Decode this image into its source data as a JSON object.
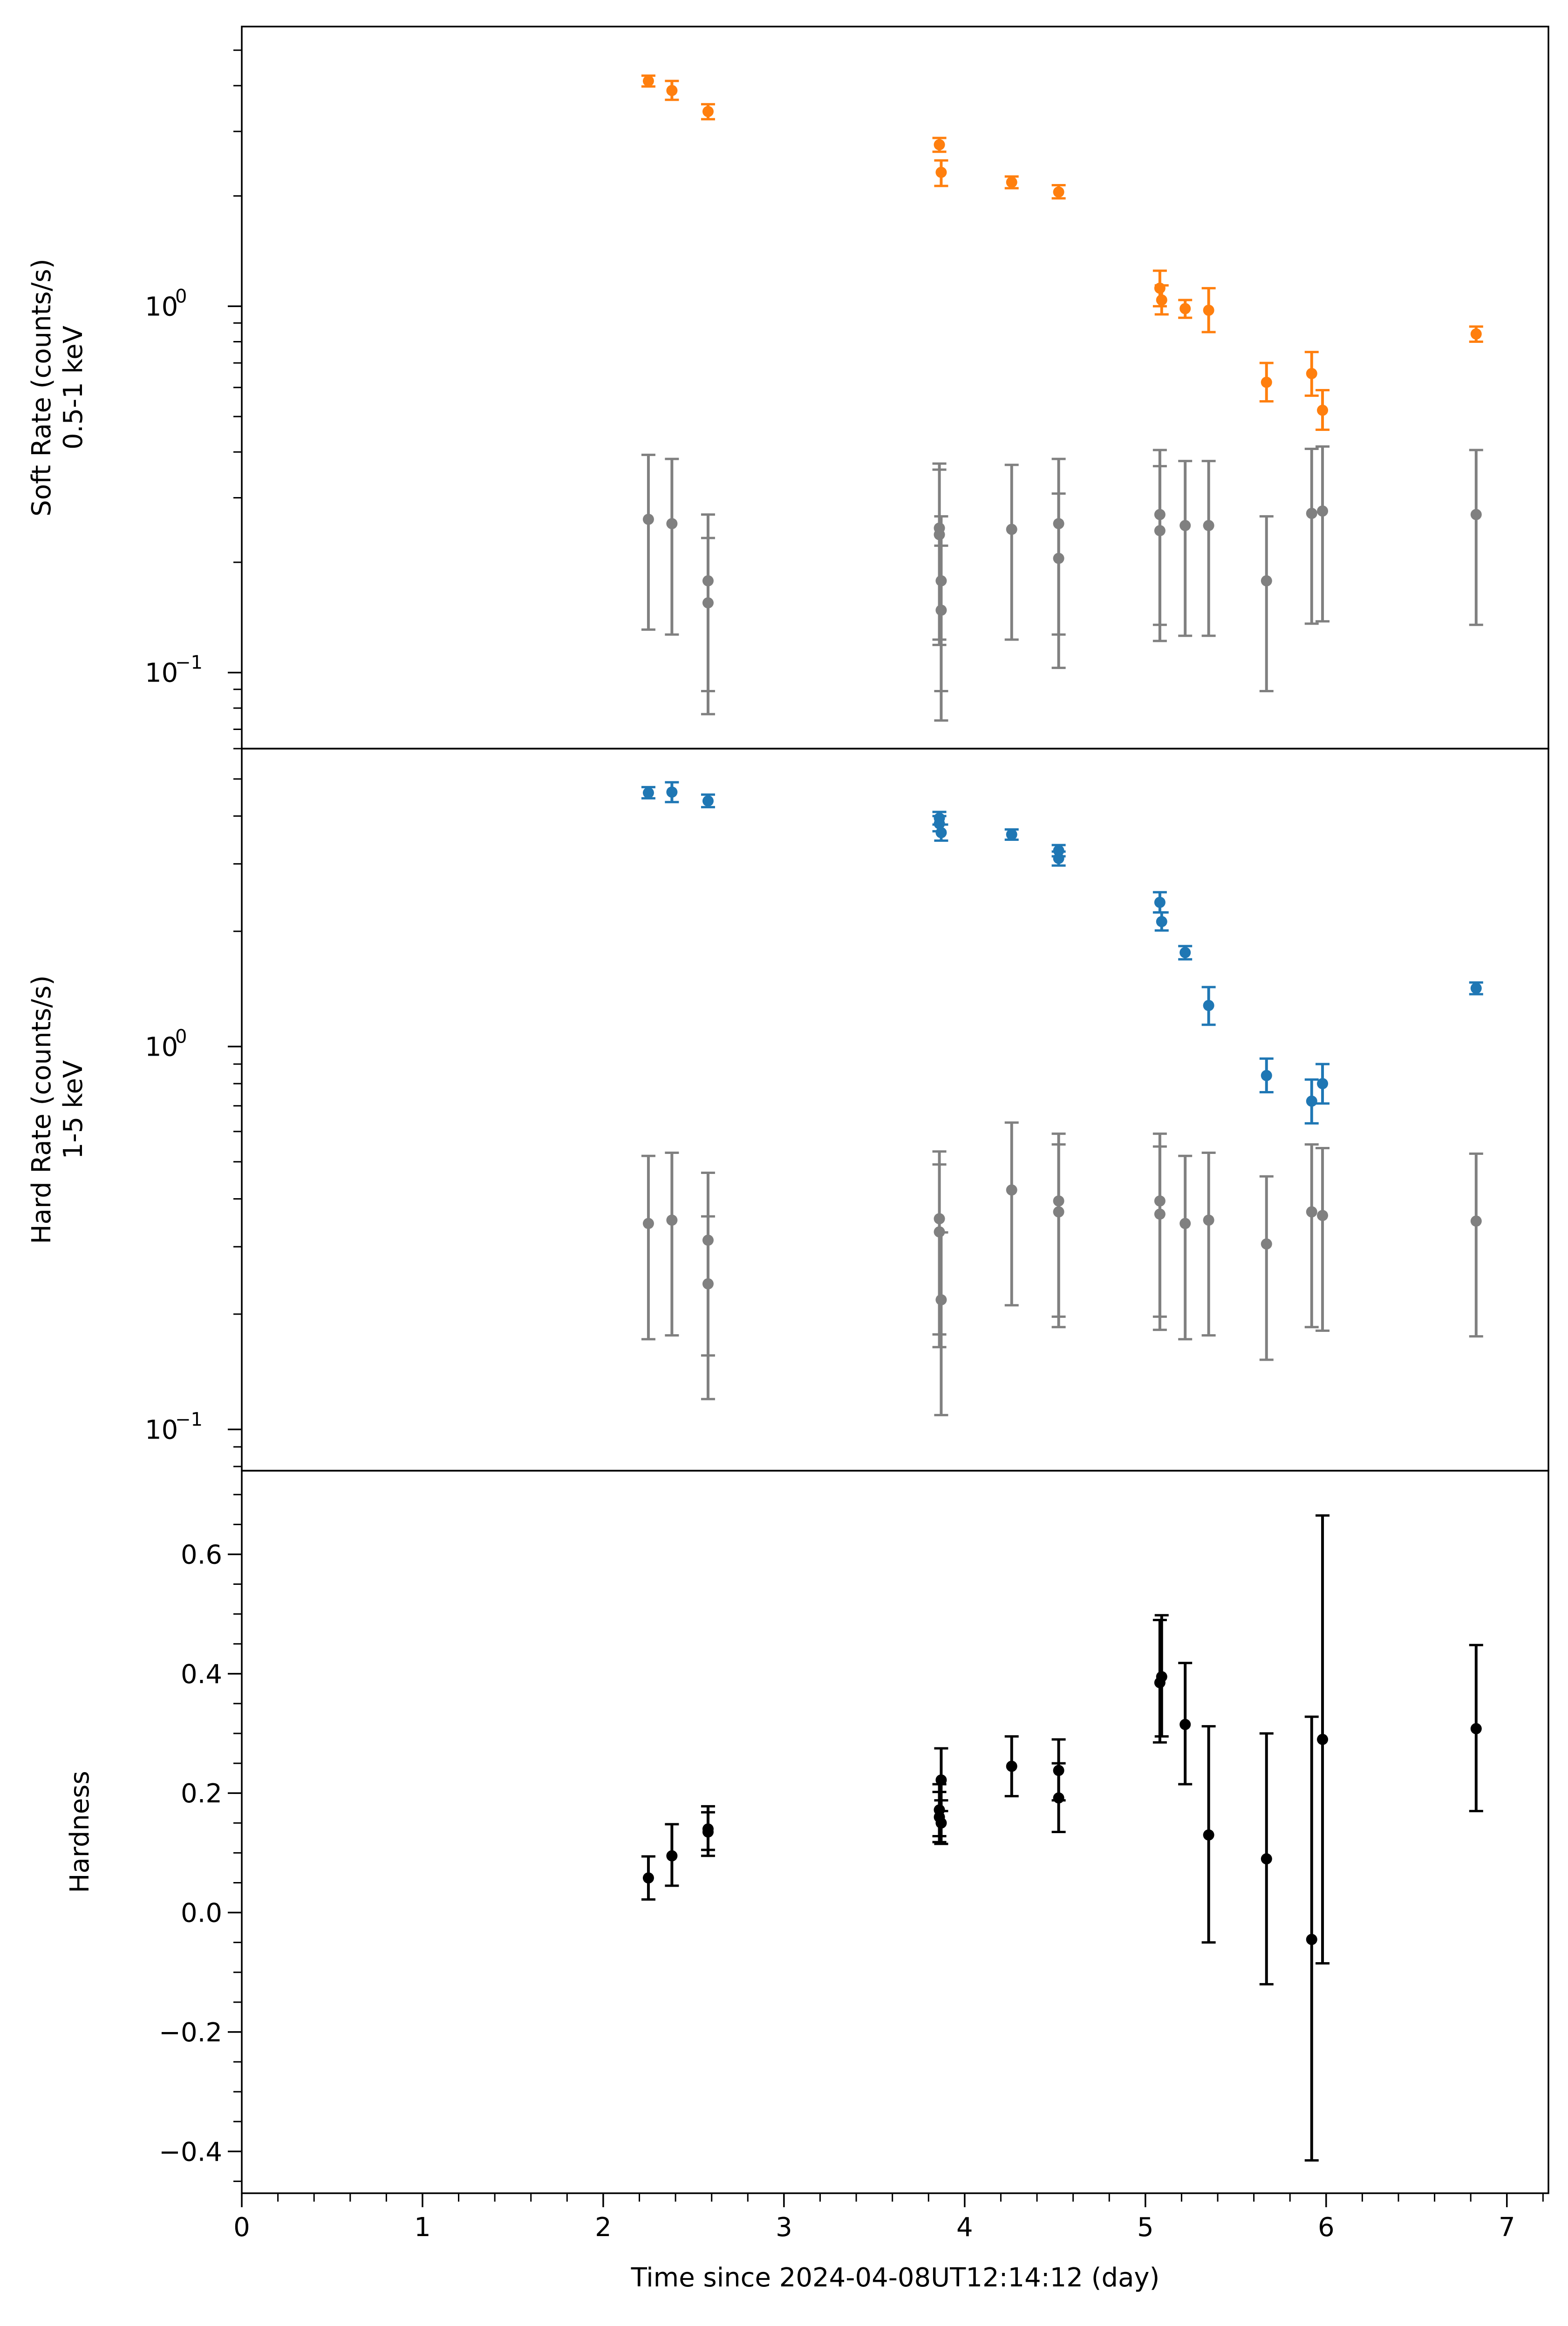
{
  "chart_data": [
    {
      "type": "scatter",
      "panel": "soft",
      "ylabel_lines": [
        "Soft Rate (counts/s)",
        "0.5-1 keV"
      ],
      "yscale": "log",
      "ylim": [
        0.062,
        5.8
      ],
      "major_ticks": [
        {
          "value": 0.1,
          "base": "10",
          "exp": "−1"
        },
        {
          "value": 1,
          "base": "10",
          "exp": "0"
        }
      ],
      "series": [
        {
          "name": "source",
          "color": "#ff7f0e",
          "points": [
            {
              "x": 2.25,
              "y": 4.12,
              "lo": 3.98,
              "hi": 4.26
            },
            {
              "x": 2.38,
              "y": 3.88,
              "lo": 3.66,
              "hi": 4.12
            },
            {
              "x": 2.58,
              "y": 3.4,
              "lo": 3.24,
              "hi": 3.56
            },
            {
              "x": 3.86,
              "y": 2.76,
              "lo": 2.64,
              "hi": 2.88
            },
            {
              "x": 3.87,
              "y": 2.32,
              "lo": 2.13,
              "hi": 2.5
            },
            {
              "x": 4.26,
              "y": 2.18,
              "lo": 2.1,
              "hi": 2.26
            },
            {
              "x": 4.52,
              "y": 2.05,
              "lo": 1.97,
              "hi": 2.14
            },
            {
              "x": 5.08,
              "y": 1.12,
              "lo": 1.0,
              "hi": 1.25
            },
            {
              "x": 5.09,
              "y": 1.04,
              "lo": 0.95,
              "hi": 1.14
            },
            {
              "x": 5.22,
              "y": 0.985,
              "lo": 0.93,
              "hi": 1.04
            },
            {
              "x": 5.35,
              "y": 0.975,
              "lo": 0.85,
              "hi": 1.12
            },
            {
              "x": 5.67,
              "y": 0.62,
              "lo": 0.55,
              "hi": 0.7
            },
            {
              "x": 5.92,
              "y": 0.655,
              "lo": 0.57,
              "hi": 0.75
            },
            {
              "x": 5.98,
              "y": 0.52,
              "lo": 0.46,
              "hi": 0.59
            },
            {
              "x": 6.83,
              "y": 0.84,
              "lo": 0.8,
              "hi": 0.88
            }
          ]
        },
        {
          "name": "background",
          "color": "#808080",
          "points": [
            {
              "x": 2.25,
              "y": 0.262,
              "lo": 0.131,
              "hi": 0.393
            },
            {
              "x": 2.38,
              "y": 0.255,
              "lo": 0.127,
              "hi": 0.383
            },
            {
              "x": 2.58,
              "y": 0.178,
              "lo": 0.089,
              "hi": 0.27
            },
            {
              "x": 2.58,
              "y": 0.155,
              "lo": 0.077,
              "hi": 0.233
            },
            {
              "x": 3.86,
              "y": 0.248,
              "lo": 0.123,
              "hi": 0.372
            },
            {
              "x": 3.86,
              "y": 0.238,
              "lo": 0.119,
              "hi": 0.358
            },
            {
              "x": 3.87,
              "y": 0.178,
              "lo": 0.089,
              "hi": 0.267
            },
            {
              "x": 3.87,
              "y": 0.148,
              "lo": 0.074,
              "hi": 0.222
            },
            {
              "x": 4.26,
              "y": 0.246,
              "lo": 0.123,
              "hi": 0.369
            },
            {
              "x": 4.52,
              "y": 0.255,
              "lo": 0.127,
              "hi": 0.383
            },
            {
              "x": 4.52,
              "y": 0.205,
              "lo": 0.103,
              "hi": 0.308
            },
            {
              "x": 5.08,
              "y": 0.27,
              "lo": 0.135,
              "hi": 0.405
            },
            {
              "x": 5.08,
              "y": 0.244,
              "lo": 0.122,
              "hi": 0.366
            },
            {
              "x": 5.22,
              "y": 0.252,
              "lo": 0.126,
              "hi": 0.378
            },
            {
              "x": 5.35,
              "y": 0.252,
              "lo": 0.126,
              "hi": 0.378
            },
            {
              "x": 5.67,
              "y": 0.178,
              "lo": 0.089,
              "hi": 0.267
            },
            {
              "x": 5.92,
              "y": 0.272,
              "lo": 0.136,
              "hi": 0.408
            },
            {
              "x": 5.98,
              "y": 0.276,
              "lo": 0.138,
              "hi": 0.414
            },
            {
              "x": 6.83,
              "y": 0.27,
              "lo": 0.135,
              "hi": 0.405
            }
          ]
        }
      ]
    },
    {
      "type": "scatter",
      "panel": "hard",
      "ylabel_lines": [
        "Hard Rate (counts/s)",
        "1-5 keV"
      ],
      "yscale": "log",
      "ylim": [
        0.078,
        6.0
      ],
      "major_ticks": [
        {
          "value": 0.1,
          "base": "10",
          "exp": "−1"
        },
        {
          "value": 1,
          "base": "10",
          "exp": "0"
        }
      ],
      "series": [
        {
          "name": "source",
          "color": "#1f77b4",
          "points": [
            {
              "x": 2.25,
              "y": 4.6,
              "lo": 4.45,
              "hi": 4.76
            },
            {
              "x": 2.38,
              "y": 4.62,
              "lo": 4.35,
              "hi": 4.9
            },
            {
              "x": 2.58,
              "y": 4.38,
              "lo": 4.22,
              "hi": 4.55
            },
            {
              "x": 3.86,
              "y": 3.95,
              "lo": 3.8,
              "hi": 4.1
            },
            {
              "x": 3.86,
              "y": 3.82,
              "lo": 3.65,
              "hi": 4.0
            },
            {
              "x": 3.87,
              "y": 3.62,
              "lo": 3.45,
              "hi": 3.8
            },
            {
              "x": 4.26,
              "y": 3.58,
              "lo": 3.47,
              "hi": 3.69
            },
            {
              "x": 4.52,
              "y": 3.25,
              "lo": 3.14,
              "hi": 3.36
            },
            {
              "x": 4.52,
              "y": 3.1,
              "lo": 2.97,
              "hi": 3.23
            },
            {
              "x": 5.08,
              "y": 2.38,
              "lo": 2.24,
              "hi": 2.53
            },
            {
              "x": 5.09,
              "y": 2.12,
              "lo": 2.01,
              "hi": 2.24
            },
            {
              "x": 5.22,
              "y": 1.76,
              "lo": 1.69,
              "hi": 1.83
            },
            {
              "x": 5.35,
              "y": 1.28,
              "lo": 1.14,
              "hi": 1.43
            },
            {
              "x": 5.67,
              "y": 0.84,
              "lo": 0.76,
              "hi": 0.93
            },
            {
              "x": 5.92,
              "y": 0.72,
              "lo": 0.63,
              "hi": 0.82
            },
            {
              "x": 5.98,
              "y": 0.8,
              "lo": 0.71,
              "hi": 0.9
            },
            {
              "x": 6.83,
              "y": 1.42,
              "lo": 1.37,
              "hi": 1.47
            }
          ]
        },
        {
          "name": "background",
          "color": "#808080",
          "points": [
            {
              "x": 2.25,
              "y": 0.345,
              "lo": 0.172,
              "hi": 0.518
            },
            {
              "x": 2.38,
              "y": 0.352,
              "lo": 0.176,
              "hi": 0.528
            },
            {
              "x": 2.58,
              "y": 0.312,
              "lo": 0.156,
              "hi": 0.468
            },
            {
              "x": 2.58,
              "y": 0.24,
              "lo": 0.12,
              "hi": 0.36
            },
            {
              "x": 3.86,
              "y": 0.355,
              "lo": 0.177,
              "hi": 0.532
            },
            {
              "x": 3.86,
              "y": 0.328,
              "lo": 0.164,
              "hi": 0.492
            },
            {
              "x": 3.87,
              "y": 0.218,
              "lo": 0.109,
              "hi": 0.327
            },
            {
              "x": 4.26,
              "y": 0.422,
              "lo": 0.211,
              "hi": 0.633
            },
            {
              "x": 4.52,
              "y": 0.395,
              "lo": 0.197,
              "hi": 0.592
            },
            {
              "x": 4.52,
              "y": 0.37,
              "lo": 0.185,
              "hi": 0.555
            },
            {
              "x": 5.08,
              "y": 0.395,
              "lo": 0.197,
              "hi": 0.592
            },
            {
              "x": 5.08,
              "y": 0.365,
              "lo": 0.182,
              "hi": 0.548
            },
            {
              "x": 5.22,
              "y": 0.345,
              "lo": 0.172,
              "hi": 0.518
            },
            {
              "x": 5.35,
              "y": 0.352,
              "lo": 0.176,
              "hi": 0.528
            },
            {
              "x": 5.67,
              "y": 0.305,
              "lo": 0.152,
              "hi": 0.458
            },
            {
              "x": 5.92,
              "y": 0.37,
              "lo": 0.185,
              "hi": 0.555
            },
            {
              "x": 5.98,
              "y": 0.362,
              "lo": 0.181,
              "hi": 0.543
            },
            {
              "x": 6.83,
              "y": 0.35,
              "lo": 0.175,
              "hi": 0.525
            }
          ]
        }
      ]
    },
    {
      "type": "scatter",
      "panel": "hardness",
      "ylabel_lines": [
        "Hardness"
      ],
      "yscale": "linear",
      "ylim": [
        -0.47,
        0.74
      ],
      "yticks": [
        -0.4,
        -0.2,
        0.0,
        0.2,
        0.4,
        0.6
      ],
      "ytick_labels": [
        "−0.4",
        "−0.2",
        "0.0",
        "0.2",
        "0.4",
        "0.6"
      ],
      "series": [
        {
          "name": "hardness",
          "color": "#000000",
          "points": [
            {
              "x": 2.25,
              "y": 0.058,
              "lo": 0.022,
              "hi": 0.094
            },
            {
              "x": 2.38,
              "y": 0.095,
              "lo": 0.045,
              "hi": 0.148
            },
            {
              "x": 2.58,
              "y": 0.135,
              "lo": 0.105,
              "hi": 0.168
            },
            {
              "x": 2.58,
              "y": 0.14,
              "lo": 0.095,
              "hi": 0.178
            },
            {
              "x": 3.86,
              "y": 0.16,
              "lo": 0.118,
              "hi": 0.202
            },
            {
              "x": 3.86,
              "y": 0.172,
              "lo": 0.128,
              "hi": 0.215
            },
            {
              "x": 3.87,
              "y": 0.15,
              "lo": 0.115,
              "hi": 0.188
            },
            {
              "x": 3.87,
              "y": 0.222,
              "lo": 0.17,
              "hi": 0.275
            },
            {
              "x": 4.26,
              "y": 0.245,
              "lo": 0.195,
              "hi": 0.295
            },
            {
              "x": 4.52,
              "y": 0.238,
              "lo": 0.188,
              "hi": 0.29
            },
            {
              "x": 4.52,
              "y": 0.192,
              "lo": 0.135,
              "hi": 0.25
            },
            {
              "x": 5.08,
              "y": 0.385,
              "lo": 0.285,
              "hi": 0.49
            },
            {
              "x": 5.09,
              "y": 0.395,
              "lo": 0.295,
              "hi": 0.498
            },
            {
              "x": 5.22,
              "y": 0.315,
              "lo": 0.215,
              "hi": 0.418
            },
            {
              "x": 5.35,
              "y": 0.13,
              "lo": -0.05,
              "hi": 0.312
            },
            {
              "x": 5.67,
              "y": 0.09,
              "lo": -0.12,
              "hi": 0.3
            },
            {
              "x": 5.92,
              "y": -0.045,
              "lo": -0.415,
              "hi": 0.328
            },
            {
              "x": 5.98,
              "y": 0.29,
              "lo": -0.085,
              "hi": 0.665
            },
            {
              "x": 6.83,
              "y": 0.308,
              "lo": 0.17,
              "hi": 0.448
            }
          ]
        }
      ]
    }
  ],
  "x_axis": {
    "xlim": [
      0,
      7.23
    ],
    "ticks": [
      0,
      1,
      2,
      3,
      4,
      5,
      6,
      7
    ],
    "tick_labels": [
      "0",
      "1",
      "2",
      "3",
      "4",
      "5",
      "6",
      "7"
    ],
    "xlabel": "Time since 2024-04-08UT12:14:12 (day)"
  }
}
